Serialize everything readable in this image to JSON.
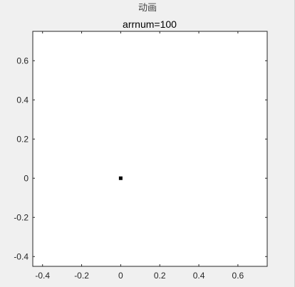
{
  "window": {
    "title": "动画"
  },
  "chart_data": {
    "type": "scatter",
    "title": "arrnum=100",
    "xlabel": "",
    "ylabel": "",
    "xlim": [
      -0.45,
      0.75
    ],
    "ylim": [
      -0.45,
      0.75
    ],
    "xticks": [
      -0.4,
      -0.2,
      0,
      0.2,
      0.4,
      0.6
    ],
    "yticks": [
      -0.4,
      -0.2,
      0,
      0.2,
      0.4,
      0.6
    ],
    "xtick_labels": [
      "-0.4",
      "-0.2",
      "0",
      "0.2",
      "0.4",
      "0.6"
    ],
    "ytick_labels": [
      "-0.4",
      "-0.2",
      "0",
      "0.2",
      "0.4",
      "0.6"
    ],
    "grid": false,
    "series": [
      {
        "x": [
          0
        ],
        "y": [
          0
        ],
        "color": "#000000",
        "marker": "square"
      }
    ]
  }
}
